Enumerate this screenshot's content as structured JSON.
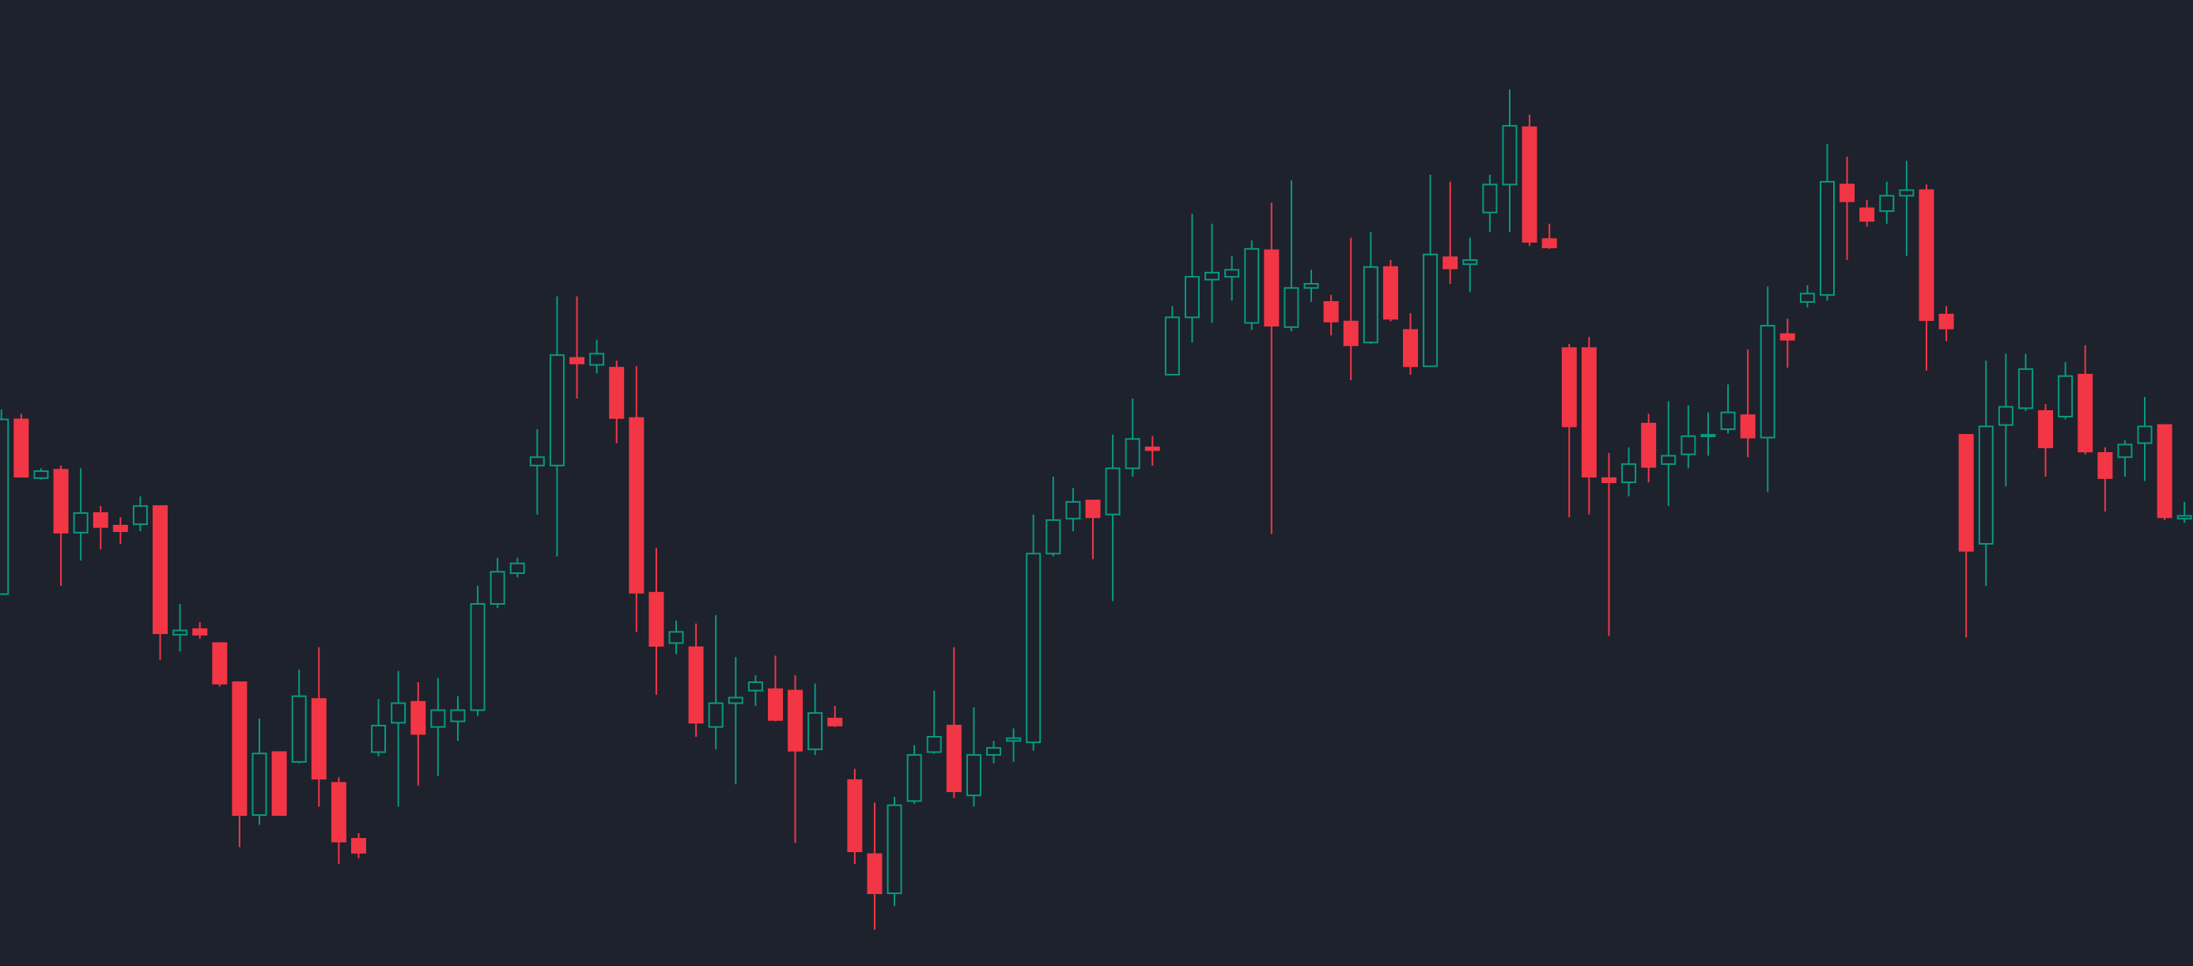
{
  "chart_data": {
    "type": "candlestick",
    "open": [
      266,
      391,
      349,
      355,
      310,
      324,
      315,
      316,
      329,
      237,
      241,
      231,
      203,
      108,
      153,
      146,
      191,
      131,
      91,
      153,
      174,
      189,
      171,
      175,
      183,
      259,
      281,
      358,
      358,
      435,
      430,
      428,
      392,
      267,
      231,
      228,
      171,
      188,
      197,
      198,
      197,
      155,
      177,
      133,
      80,
      52,
      118,
      153,
      172,
      122,
      151,
      161,
      160,
      295,
      320,
      333,
      323,
      356,
      371,
      423,
      464,
      491,
      493,
      460,
      512,
      457,
      485,
      475,
      461,
      446,
      500,
      455,
      429,
      507,
      502,
      539,
      559,
      600,
      520,
      442,
      442,
      349,
      346,
      388,
      359,
      366,
      379,
      384,
      394,
      378,
      452,
      475,
      480,
      559,
      542,
      540,
      551,
      555,
      466,
      380,
      302,
      387,
      399,
      397,
      393,
      423,
      367,
      364,
      374,
      387,
      320
    ],
    "high": [
      398,
      395,
      356,
      358,
      356,
      329,
      321,
      336,
      329,
      259,
      246,
      231,
      203,
      177,
      153,
      212,
      228,
      135,
      95,
      191,
      211,
      203,
      206,
      193,
      272,
      292,
      292,
      384,
      479,
      479,
      448,
      433,
      429,
      299,
      247,
      245,
      251,
      221,
      208,
      222,
      208,
      202,
      186,
      141,
      117,
      121,
      158,
      197,
      228,
      185,
      161,
      170,
      323,
      350,
      342,
      333,
      380,
      406,
      379,
      472,
      538,
      531,
      508,
      519,
      546,
      562,
      498,
      480,
      521,
      525,
      505,
      467,
      566,
      561,
      521,
      566,
      627,
      609,
      531,
      445,
      450,
      367,
      371,
      395,
      404,
      401,
      396,
      416,
      441,
      486,
      463,
      487,
      588,
      579,
      548,
      561,
      576,
      559,
      472,
      380,
      433,
      438,
      438,
      402,
      432,
      444,
      371,
      376,
      407,
      387,
      332
    ],
    "low": [
      266,
      350,
      348,
      272,
      290,
      298,
      302,
      311,
      219,
      225,
      234,
      200,
      85,
      101,
      108,
      145,
      114,
      73,
      77,
      150,
      114,
      129,
      136,
      161,
      179,
      256,
      278,
      323,
      293,
      406,
      424,
      374,
      239,
      194,
      223,
      164,
      155,
      130,
      186,
      175,
      88,
      151,
      171,
      73,
      26,
      43,
      116,
      152,
      120,
      114,
      145,
      146,
      154,
      293,
      311,
      291,
      261,
      350,
      358,
      423,
      446,
      460,
      476,
      455,
      309,
      454,
      475,
      451,
      419,
      445,
      461,
      423,
      429,
      488,
      482,
      525,
      525,
      515,
      513,
      321,
      323,
      236,
      336,
      346,
      329,
      356,
      365,
      381,
      364,
      339,
      428,
      471,
      476,
      505,
      529,
      531,
      508,
      426,
      447,
      235,
      272,
      343,
      397,
      350,
      391,
      366,
      325,
      350,
      347,
      319,
      317
    ],
    "close": [
      391,
      350,
      354,
      310,
      324,
      314,
      311,
      329,
      238,
      240,
      237,
      202,
      108,
      152,
      108,
      193,
      134,
      89,
      81,
      172,
      188,
      166,
      183,
      183,
      259,
      282,
      288,
      364,
      437,
      431,
      438,
      392,
      267,
      229,
      239,
      174,
      188,
      192,
      203,
      176,
      154,
      181,
      172,
      82,
      52,
      115,
      151,
      164,
      125,
      151,
      156,
      163,
      295,
      319,
      332,
      321,
      356,
      377,
      369,
      464,
      493,
      496,
      498,
      513,
      458,
      485,
      488,
      461,
      444,
      500,
      463,
      429,
      509,
      499,
      505,
      559,
      601,
      518,
      514,
      386,
      350,
      346,
      359,
      357,
      365,
      379,
      380,
      396,
      378,
      458,
      448,
      481,
      561,
      547,
      533,
      551,
      555,
      462,
      456,
      297,
      386,
      400,
      427,
      371,
      422,
      368,
      349,
      373,
      386,
      321,
      322
    ],
    "up_color": "#089981",
    "down_color": "#f23645",
    "background": "#1e222d",
    "ylim": [
      0,
      691
    ]
  }
}
